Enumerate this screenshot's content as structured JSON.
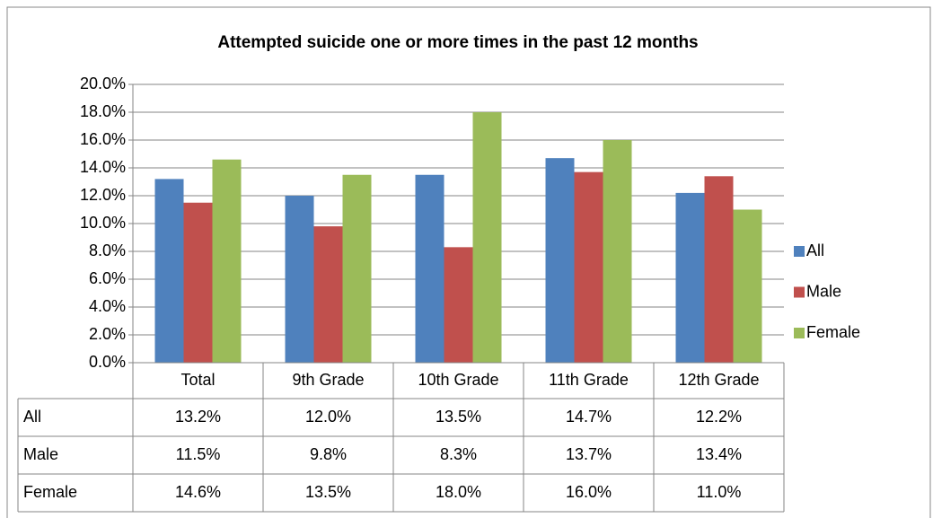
{
  "chart_data": {
    "type": "bar",
    "title": "Attempted suicide one or more times in the past 12 months",
    "categories": [
      "Total",
      "9th Grade",
      "10th Grade",
      "11th Grade",
      "12th Grade"
    ],
    "series": [
      {
        "name": "All",
        "color": "#4f81bd",
        "values": [
          13.2,
          12.0,
          13.5,
          14.7,
          12.2
        ],
        "value_labels": [
          "13.2%",
          "12.0%",
          "13.5%",
          "14.7%",
          "12.2%"
        ]
      },
      {
        "name": "Male",
        "color": "#c0504d",
        "values": [
          11.5,
          9.8,
          8.3,
          13.7,
          13.4
        ],
        "value_labels": [
          "11.5%",
          "9.8%",
          "8.3%",
          "13.7%",
          "13.4%"
        ]
      },
      {
        "name": "Female",
        "color": "#9bbb59",
        "values": [
          14.6,
          13.5,
          18.0,
          16.0,
          11.0
        ],
        "value_labels": [
          "14.6%",
          "13.5%",
          "18.0%",
          "16.0%",
          "11.0%"
        ]
      }
    ],
    "ylim": [
      0,
      20
    ],
    "yticks": [
      {
        "value": 0,
        "label": "0.0%"
      },
      {
        "value": 2,
        "label": "2.0%"
      },
      {
        "value": 4,
        "label": "4.0%"
      },
      {
        "value": 6,
        "label": "6.0%"
      },
      {
        "value": 8,
        "label": "8.0%"
      },
      {
        "value": 10,
        "label": "10.0%"
      },
      {
        "value": 12,
        "label": "12.0%"
      },
      {
        "value": 14,
        "label": "14.0%"
      },
      {
        "value": 16,
        "label": "16.0%"
      },
      {
        "value": 18,
        "label": "18.0%"
      },
      {
        "value": 20,
        "label": "20.0%"
      }
    ],
    "grid": true,
    "legend": "right"
  }
}
